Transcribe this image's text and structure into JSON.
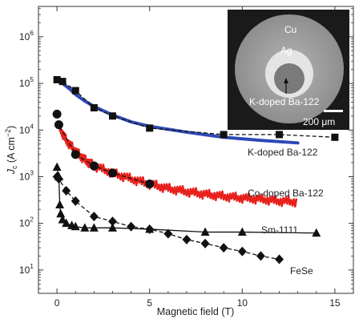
{
  "chart_data": {
    "type": "line",
    "xlabel": "Magnetic field (T)",
    "ylabel_main": "J",
    "ylabel_sub": "c",
    "ylabel_units": " (A cm",
    "ylabel_exp": "−2",
    "ylabel_close": ")",
    "xlim": [
      -1,
      16
    ],
    "ylim_log10": [
      0.5,
      6.65
    ],
    "y_scale": "log",
    "x_ticks": [
      {
        "v": 0,
        "label": "0"
      },
      {
        "v": 5,
        "label": "5"
      },
      {
        "v": 10,
        "label": "10"
      },
      {
        "v": 15,
        "label": "15"
      }
    ],
    "y_ticks": [
      {
        "e": 1,
        "base": "10",
        "exp": "1"
      },
      {
        "e": 2,
        "base": "10",
        "exp": "2"
      },
      {
        "e": 3,
        "base": "10",
        "exp": "3"
      },
      {
        "e": 4,
        "base": "10",
        "exp": "4"
      },
      {
        "e": 5,
        "base": "10",
        "exp": "5"
      },
      {
        "e": 6,
        "base": "10",
        "exp": "6"
      }
    ],
    "series": [
      {
        "name": "K-doped Ba-122",
        "marker": "square",
        "line": "dashed",
        "points": [
          [
            0,
            120000
          ],
          [
            0.3,
            110000
          ],
          [
            1,
            70000
          ],
          [
            2,
            30000
          ],
          [
            3,
            20000
          ],
          [
            5,
            11000
          ],
          [
            9,
            8000
          ],
          [
            12,
            8000
          ],
          [
            15,
            7000
          ]
        ],
        "fit_color": "#2e49b5",
        "fit_points": [
          [
            0,
            115000
          ],
          [
            0.3,
            100000
          ],
          [
            0.7,
            75000
          ],
          [
            1,
            58000
          ],
          [
            1.5,
            42000
          ],
          [
            2,
            32000
          ],
          [
            3,
            21000
          ],
          [
            4,
            15000
          ],
          [
            5,
            12000
          ],
          [
            7,
            9000
          ],
          [
            9,
            7000
          ],
          [
            11,
            6000
          ],
          [
            13,
            5300
          ]
        ]
      },
      {
        "name": "Co-doped Ba-122",
        "marker": "circle",
        "line": "dashed",
        "points": [
          [
            0,
            22000
          ],
          [
            0.1,
            13000
          ],
          [
            1,
            3000
          ],
          [
            2,
            1700
          ],
          [
            3,
            1200
          ],
          [
            5,
            700
          ]
        ],
        "noisy_color": "#e8211d",
        "noisy_points": [
          [
            0.1,
            12000
          ],
          [
            0.5,
            6000
          ],
          [
            1,
            3500
          ],
          [
            1.5,
            2300
          ],
          [
            2,
            1700
          ],
          [
            3,
            1200
          ],
          [
            4,
            900
          ],
          [
            5,
            700
          ],
          [
            6,
            560
          ],
          [
            7,
            480
          ],
          [
            8,
            420
          ],
          [
            9,
            380
          ],
          [
            10,
            350
          ],
          [
            11,
            330
          ],
          [
            12,
            300
          ],
          [
            13,
            290
          ]
        ]
      },
      {
        "name": "Sm-1111",
        "marker": "triangle",
        "line": "solid",
        "points": [
          [
            0,
            1600
          ],
          [
            0.1,
            1000
          ],
          [
            0.15,
            250
          ],
          [
            0.2,
            160
          ],
          [
            0.3,
            120
          ],
          [
            0.5,
            100
          ],
          [
            0.8,
            90
          ],
          [
            1,
            85
          ],
          [
            1.5,
            80
          ],
          [
            2,
            80
          ],
          [
            3,
            80
          ],
          [
            5,
            75
          ],
          [
            8,
            65
          ],
          [
            10,
            65
          ],
          [
            14,
            62
          ]
        ]
      },
      {
        "name": "FeSe",
        "marker": "diamond",
        "line": "dashed",
        "points": [
          [
            0,
            1000
          ],
          [
            0.1,
            900
          ],
          [
            0.5,
            500
          ],
          [
            1,
            300
          ],
          [
            2,
            140
          ],
          [
            3,
            110
          ],
          [
            4,
            85
          ],
          [
            5,
            75
          ],
          [
            6,
            60
          ],
          [
            7,
            45
          ],
          [
            8,
            37
          ],
          [
            9,
            30
          ],
          [
            10,
            25
          ],
          [
            11,
            20
          ],
          [
            12,
            17
          ]
        ]
      }
    ],
    "series_labels": [
      "K-doped Ba-122",
      "Co-doped Ba-122",
      "Sm-1111",
      "FeSe"
    ],
    "inset": {
      "label_outer": "Cu",
      "label_middle": "Ag",
      "label_core": "K-doped Ba-122",
      "scale_bar": "200 μm"
    }
  }
}
